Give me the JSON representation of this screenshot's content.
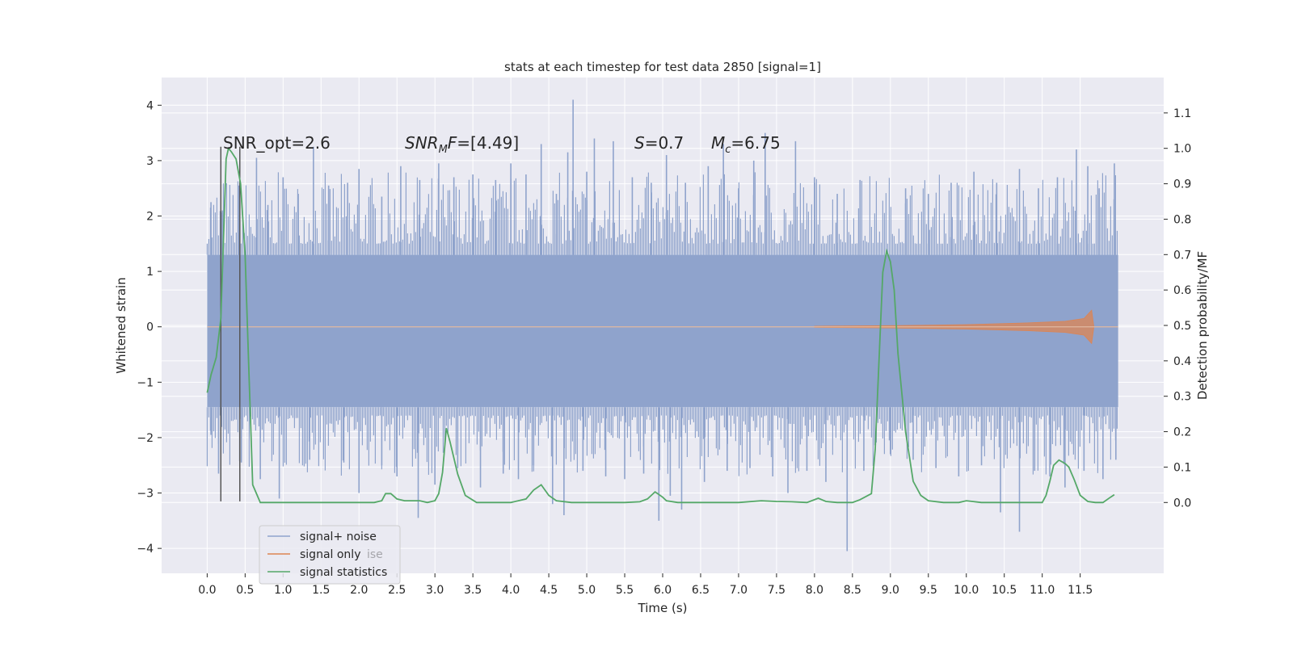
{
  "chart_data": {
    "type": "line",
    "title": "stats at each timestep for test data 2850 [signal=1]",
    "xlabel": "Time (s)",
    "ylabel": "Whitened strain",
    "y2label": "Detection probability/MF",
    "xlim": [
      -0.6,
      12.6
    ],
    "ylim": [
      -4.45,
      4.5
    ],
    "y2lim": [
      -0.2,
      1.2
    ],
    "x_ticks": [
      0.0,
      0.5,
      1.0,
      1.5,
      2.0,
      2.5,
      3.0,
      3.5,
      4.0,
      4.5,
      5.0,
      5.5,
      6.0,
      6.5,
      7.0,
      7.5,
      8.0,
      8.5,
      9.0,
      9.5,
      10.0,
      10.5,
      11.0,
      11.5
    ],
    "x_tick_labels": [
      "0.0",
      "0.5",
      "1.0",
      "1.5",
      "2.0",
      "2.5",
      "3.0",
      "3.5",
      "4.0",
      "4.5",
      "5.0",
      "5.5",
      "6.0",
      "6.5",
      "7.0",
      "7.5",
      "8.0",
      "8.5",
      "9.0",
      "9.5",
      "10.0",
      "10.5",
      "11.0",
      "11.5"
    ],
    "y_ticks": [
      -4,
      -3,
      -2,
      -1,
      0,
      1,
      2,
      3,
      4
    ],
    "y_tick_labels": [
      "−4",
      "−3",
      "−2",
      "−1",
      "0",
      "1",
      "2",
      "3",
      "4"
    ],
    "y2_ticks": [
      0.0,
      0.1,
      0.2,
      0.3,
      0.4,
      0.5,
      0.6,
      0.7,
      0.8,
      0.9,
      1.0,
      1.1
    ],
    "y2_tick_labels": [
      "0.0",
      "0.1",
      "0.2",
      "0.3",
      "0.4",
      "0.5",
      "0.6",
      "0.7",
      "0.8",
      "0.9",
      "1.0",
      "1.1"
    ],
    "grid": true,
    "legend_position": "lower-left",
    "legend": [
      {
        "label": "signal+ noise",
        "color": "#8fa3cc"
      },
      {
        "label": "signal only",
        "color": "#dd8452"
      },
      {
        "label": "signal statistics",
        "color": "#55a868"
      }
    ],
    "overlapped_legend_text": "ise",
    "annotations": {
      "snr_opt": "SNR_opt=2.6",
      "snr_mf_sym": "SNR",
      "snr_mf_sub": "M",
      "snr_mf_rest": "F",
      "snr_mf_value": "=[4.49]",
      "s_sym": "S",
      "s_value": "=0.7",
      "mc_sym": "M",
      "mc_sub": "c",
      "mc_value": "=6.75"
    },
    "series": [
      {
        "name": "signal+ noise",
        "color": "#8fa3cc",
        "t_range": [
          0.0,
          12.0
        ],
        "envelope": [
          1.3,
          -1.45
        ],
        "spikes_pos": [
          [
            0.05,
            2.25
          ],
          [
            0.2,
            2.1
          ],
          [
            0.42,
            2.55
          ],
          [
            0.65,
            3.05
          ],
          [
            0.8,
            2.2
          ],
          [
            1.0,
            2.7
          ],
          [
            1.2,
            2.4
          ],
          [
            1.4,
            3.25
          ],
          [
            1.6,
            2.55
          ],
          [
            1.85,
            2.6
          ],
          [
            2.0,
            2.85
          ],
          [
            2.3,
            2.35
          ],
          [
            2.55,
            2.9
          ],
          [
            2.8,
            2.65
          ],
          [
            3.05,
            2.95
          ],
          [
            3.25,
            2.7
          ],
          [
            3.5,
            2.75
          ],
          [
            3.8,
            2.65
          ],
          [
            4.0,
            2.95
          ],
          [
            4.2,
            2.75
          ],
          [
            4.4,
            3.3
          ],
          [
            4.6,
            2.4
          ],
          [
            4.75,
            3.15
          ],
          [
            4.82,
            4.1
          ],
          [
            5.0,
            2.8
          ],
          [
            5.1,
            3.4
          ],
          [
            5.35,
            3.35
          ],
          [
            5.6,
            2.7
          ],
          [
            5.85,
            2.6
          ],
          [
            6.05,
            3.1
          ],
          [
            6.3,
            2.6
          ],
          [
            6.6,
            2.9
          ],
          [
            6.8,
            3.3
          ],
          [
            7.0,
            2.5
          ],
          [
            7.2,
            3.0
          ],
          [
            7.35,
            3.5
          ],
          [
            7.75,
            3.35
          ],
          [
            8.0,
            2.7
          ],
          [
            8.3,
            2.4
          ],
          [
            8.6,
            2.65
          ],
          [
            8.85,
            1.3
          ],
          [
            9.2,
            2.5
          ],
          [
            9.5,
            2.4
          ],
          [
            9.8,
            2.6
          ],
          [
            10.1,
            2.8
          ],
          [
            10.4,
            2.6
          ],
          [
            10.7,
            2.85
          ],
          [
            10.95,
            2.5
          ],
          [
            11.2,
            2.7
          ],
          [
            11.45,
            3.2
          ],
          [
            11.6,
            2.9
          ],
          [
            11.75,
            2.5
          ],
          [
            11.95,
            2.95
          ]
        ],
        "spikes_neg": [
          [
            0.05,
            -1.95
          ],
          [
            0.15,
            -2.65
          ],
          [
            0.45,
            -2.45
          ],
          [
            0.7,
            -2.75
          ],
          [
            0.95,
            -3.1
          ],
          [
            1.35,
            -2.4
          ],
          [
            1.8,
            -2.45
          ],
          [
            2.0,
            -3.0
          ],
          [
            2.3,
            -2.5
          ],
          [
            2.5,
            -2.7
          ],
          [
            2.78,
            -3.45
          ],
          [
            3.0,
            -2.85
          ],
          [
            3.3,
            -2.55
          ],
          [
            3.6,
            -2.9
          ],
          [
            3.9,
            -2.65
          ],
          [
            4.1,
            -2.75
          ],
          [
            4.3,
            -2.5
          ],
          [
            4.55,
            -3.2
          ],
          [
            4.7,
            -3.4
          ],
          [
            4.95,
            -2.6
          ],
          [
            5.25,
            -2.7
          ],
          [
            5.5,
            -2.75
          ],
          [
            5.75,
            -2.65
          ],
          [
            5.95,
            -3.5
          ],
          [
            6.1,
            -3.05
          ],
          [
            6.25,
            -3.3
          ],
          [
            6.55,
            -2.8
          ],
          [
            6.85,
            -2.6
          ],
          [
            7.15,
            -2.55
          ],
          [
            7.45,
            -2.7
          ],
          [
            7.65,
            -3.0
          ],
          [
            7.9,
            -2.6
          ],
          [
            8.15,
            -2.8
          ],
          [
            8.43,
            -4.05
          ],
          [
            8.65,
            -2.6
          ],
          [
            9.0,
            -2.3
          ],
          [
            9.3,
            -2.4
          ],
          [
            9.6,
            -2.55
          ],
          [
            9.9,
            -2.7
          ],
          [
            10.2,
            -2.5
          ],
          [
            10.45,
            -3.35
          ],
          [
            10.7,
            -3.7
          ],
          [
            10.9,
            -2.6
          ],
          [
            11.1,
            -2.7
          ],
          [
            11.3,
            -2.9
          ],
          [
            11.55,
            -2.6
          ],
          [
            11.8,
            -2.75
          ],
          [
            11.97,
            -2.4
          ]
        ]
      },
      {
        "name": "signal only",
        "color": "#dd8452",
        "envelope": [
          [
            8.0,
            0.01
          ],
          [
            9.0,
            0.02
          ],
          [
            10.0,
            0.04
          ],
          [
            10.8,
            0.07
          ],
          [
            11.3,
            0.1
          ],
          [
            11.55,
            0.15
          ],
          [
            11.65,
            0.3
          ],
          [
            11.68,
            0.0
          ]
        ]
      },
      {
        "name": "signal statistics",
        "color": "#55a868",
        "axis": "y2",
        "x": [
          0.0,
          0.05,
          0.12,
          0.18,
          0.25,
          0.28,
          0.32,
          0.38,
          0.44,
          0.5,
          0.55,
          0.6,
          0.7,
          0.8,
          1.0,
          1.5,
          2.0,
          2.2,
          2.3,
          2.35,
          2.42,
          2.5,
          2.6,
          2.8,
          2.9,
          3.0,
          3.05,
          3.1,
          3.15,
          3.2,
          3.3,
          3.4,
          3.55,
          3.7,
          4.0,
          4.2,
          4.3,
          4.4,
          4.5,
          4.6,
          4.8,
          5.0,
          5.2,
          5.5,
          5.7,
          5.8,
          5.9,
          6.0,
          6.05,
          6.2,
          6.5,
          7.0,
          7.3,
          7.5,
          7.7,
          7.9,
          8.05,
          8.15,
          8.3,
          8.5,
          8.6,
          8.75,
          8.8,
          8.85,
          8.9,
          8.95,
          9.0,
          9.05,
          9.1,
          9.2,
          9.3,
          9.4,
          9.5,
          9.7,
          9.9,
          10.0,
          10.2,
          10.5,
          10.8,
          11.0,
          11.05,
          11.1,
          11.15,
          11.22,
          11.3,
          11.35,
          11.42,
          11.5,
          11.6,
          11.7,
          11.8,
          11.9,
          11.95
        ],
        "y": [
          0.31,
          0.36,
          0.41,
          0.52,
          0.97,
          1.0,
          0.99,
          0.97,
          0.9,
          0.7,
          0.37,
          0.05,
          0.0,
          0.0,
          0.0,
          0.0,
          0.0,
          0.0,
          0.005,
          0.025,
          0.025,
          0.01,
          0.005,
          0.005,
          0.0,
          0.005,
          0.025,
          0.085,
          0.21,
          0.17,
          0.08,
          0.02,
          0.0,
          0.0,
          0.0,
          0.01,
          0.035,
          0.05,
          0.02,
          0.005,
          0.0,
          0.0,
          0.0,
          0.0,
          0.002,
          0.01,
          0.03,
          0.015,
          0.005,
          0.0,
          0.0,
          0.0,
          0.005,
          0.003,
          0.002,
          0.0,
          0.012,
          0.003,
          0.0,
          0.0,
          0.008,
          0.025,
          0.15,
          0.4,
          0.65,
          0.71,
          0.68,
          0.6,
          0.42,
          0.2,
          0.06,
          0.02,
          0.005,
          0.0,
          0.0,
          0.005,
          0.0,
          0.0,
          0.0,
          0.0,
          0.02,
          0.06,
          0.105,
          0.12,
          0.11,
          0.1,
          0.065,
          0.02,
          0.003,
          0.0,
          0.0,
          0.015,
          0.022
        ]
      }
    ],
    "vertical_markers": [
      0.18,
      0.43
    ],
    "vertical_marker_color": "#555555"
  }
}
